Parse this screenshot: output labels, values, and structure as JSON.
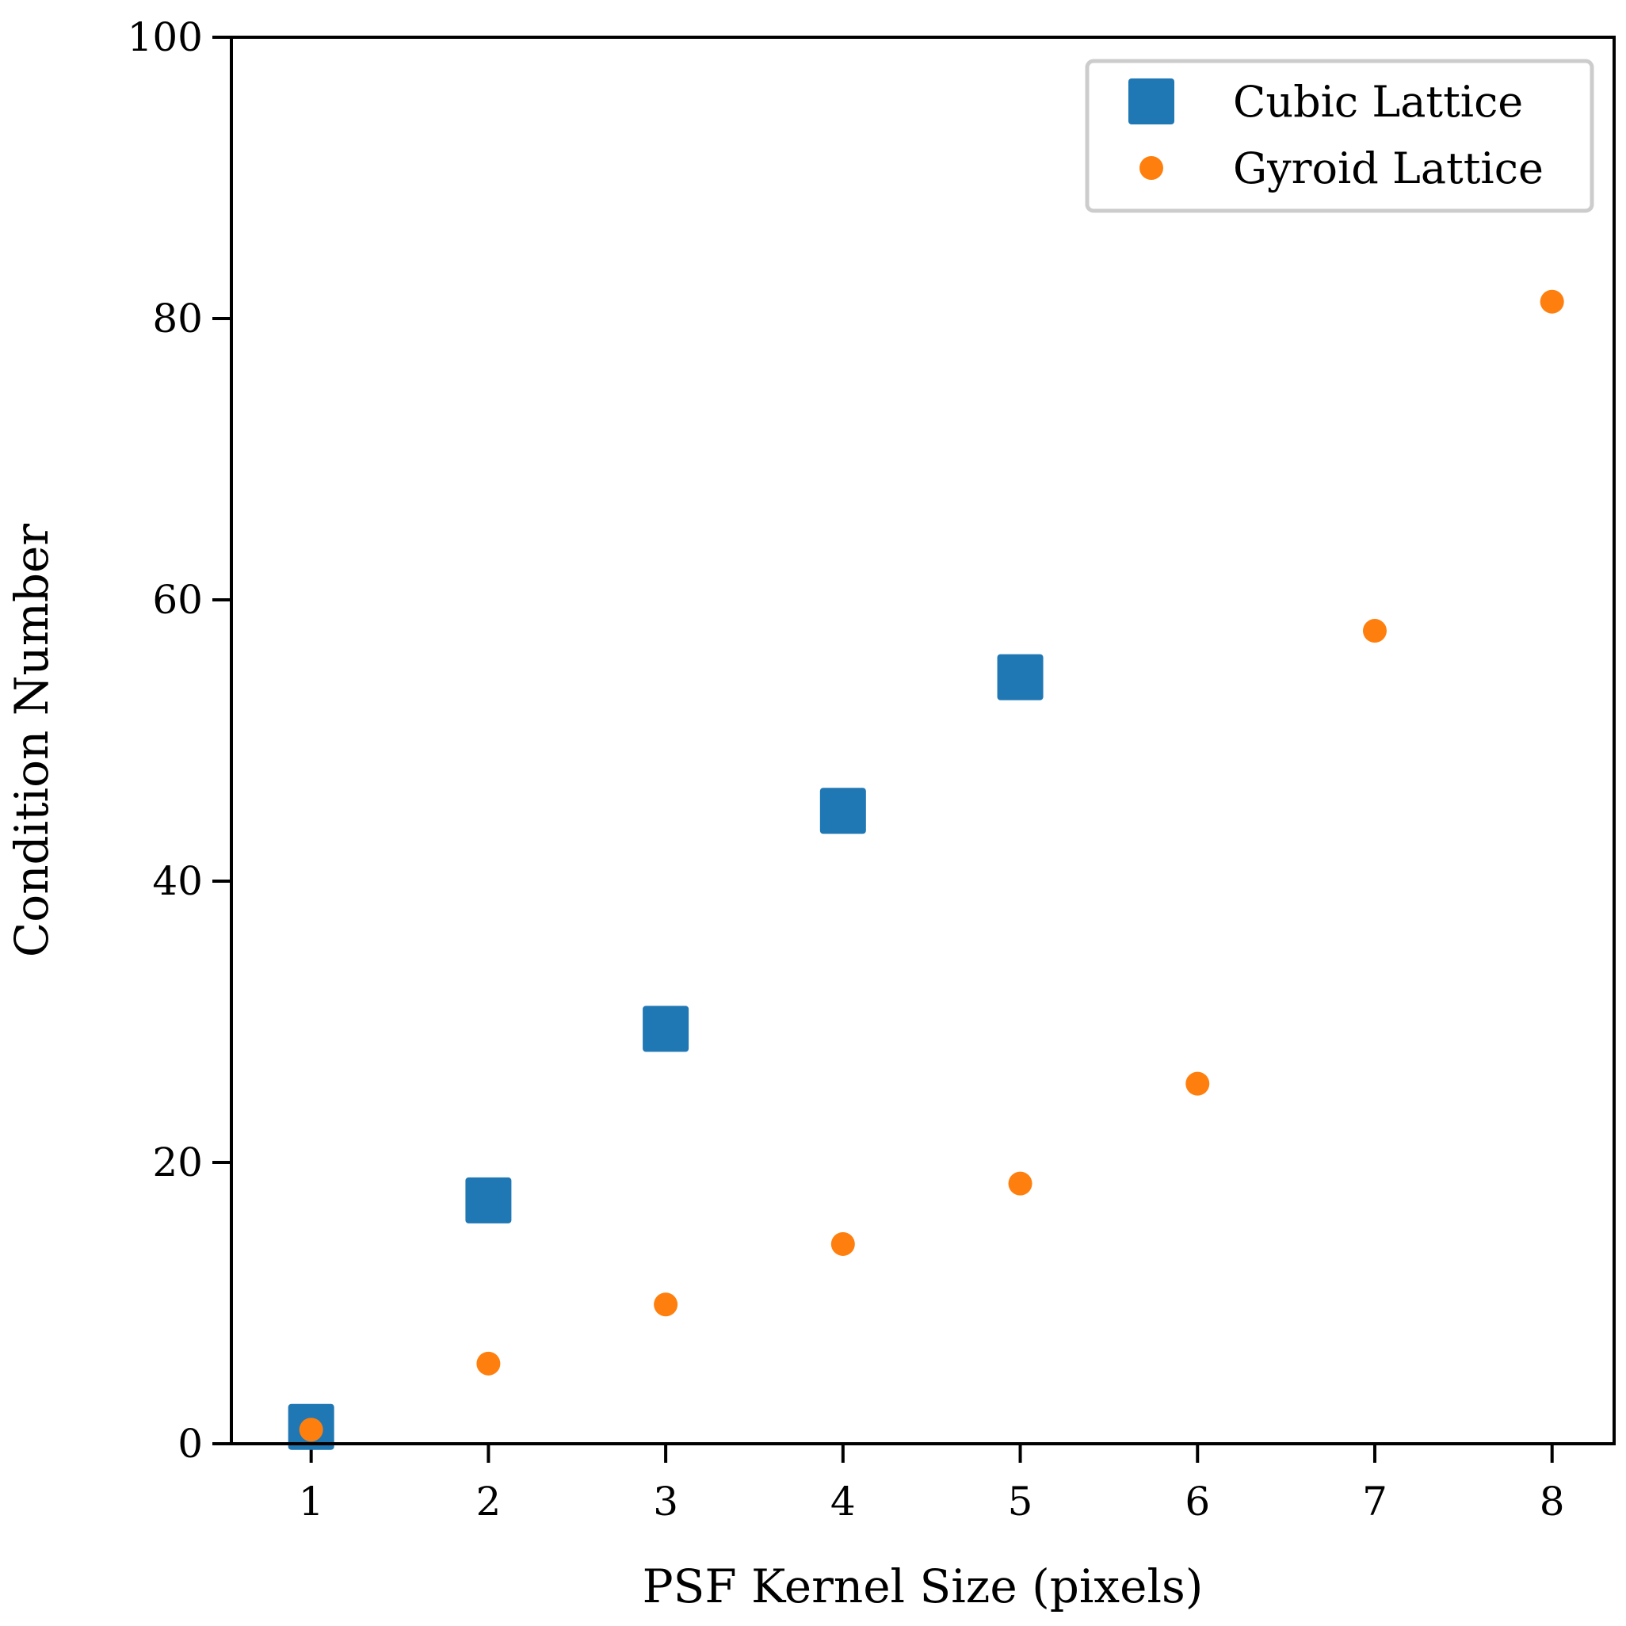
{
  "chart_data": {
    "type": "scatter",
    "xlabel": "PSF Kernel Size (pixels)",
    "ylabel": "Condition Number",
    "xlim": [
      0.55,
      8.35
    ],
    "ylim": [
      0,
      100
    ],
    "xticks": [
      1,
      2,
      3,
      4,
      5,
      6,
      7,
      8
    ],
    "yticks": [
      0,
      20,
      40,
      60,
      80,
      100
    ],
    "grid": false,
    "legend_position": "top-right",
    "series": [
      {
        "name": "Cubic Lattice",
        "marker": "square",
        "color": "#1f77b4",
        "x": [
          1,
          2,
          3,
          4,
          5
        ],
        "y": [
          1.2,
          17.3,
          29.5,
          45.0,
          54.5
        ]
      },
      {
        "name": "Gyroid Lattice",
        "marker": "circle",
        "color": "#ff7f0e",
        "x": [
          1,
          2,
          3,
          4,
          5,
          6,
          7,
          8
        ],
        "y": [
          1.0,
          5.7,
          9.9,
          14.2,
          18.5,
          25.6,
          57.8,
          81.2
        ]
      }
    ]
  }
}
